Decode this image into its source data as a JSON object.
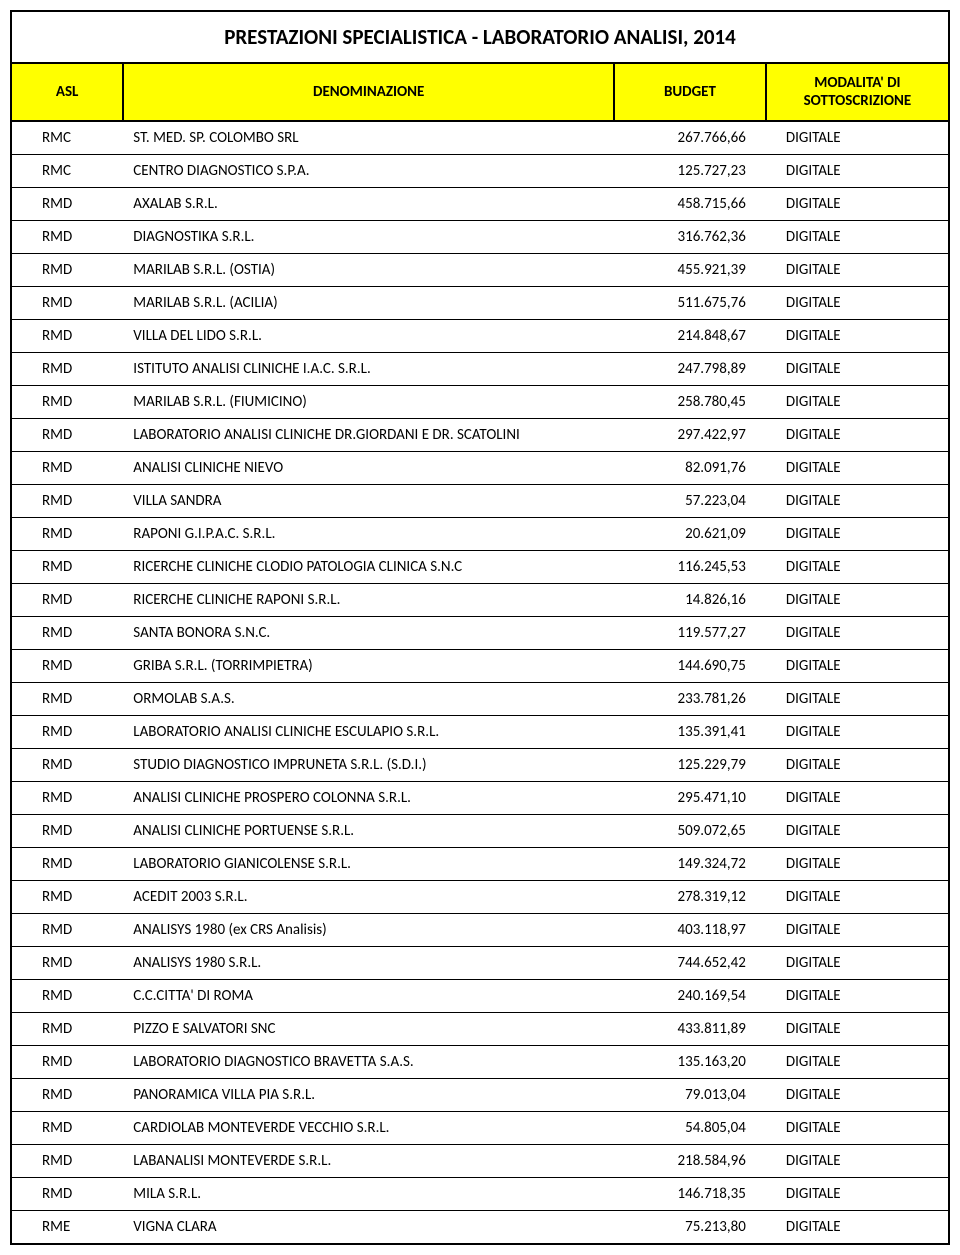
{
  "title": "PRESTAZIONI SPECIALISTICA - LABORATORIO ANALISI, 2014",
  "columns": {
    "asl": "ASL",
    "denom": "DENOMINAZIONE",
    "budget": "BUDGET",
    "modal": "MODALITA' DI SOTTOSCRIZIONE"
  },
  "rows": [
    {
      "asl": "RMC",
      "denom": "ST. MED. SP. COLOMBO SRL",
      "budget": "267.766,66",
      "modal": "DIGITALE"
    },
    {
      "asl": "RMC",
      "denom": "CENTRO DIAGNOSTICO S.P.A.",
      "budget": "125.727,23",
      "modal": "DIGITALE"
    },
    {
      "asl": "RMD",
      "denom": "AXALAB S.R.L.",
      "budget": "458.715,66",
      "modal": "DIGITALE"
    },
    {
      "asl": "RMD",
      "denom": "DIAGNOSTIKA S.R.L.",
      "budget": "316.762,36",
      "modal": "DIGITALE"
    },
    {
      "asl": "RMD",
      "denom": "MARILAB S.R.L. (OSTIA)",
      "budget": "455.921,39",
      "modal": "DIGITALE"
    },
    {
      "asl": "RMD",
      "denom": "MARILAB S.R.L. (ACILIA)",
      "budget": "511.675,76",
      "modal": "DIGITALE"
    },
    {
      "asl": "RMD",
      "denom": "VILLA DEL LIDO S.R.L.",
      "budget": "214.848,67",
      "modal": "DIGITALE"
    },
    {
      "asl": "RMD",
      "denom": "ISTITUTO ANALISI CLINICHE I.A.C. S.R.L.",
      "budget": "247.798,89",
      "modal": "DIGITALE"
    },
    {
      "asl": "RMD",
      "denom": "MARILAB S.R.L. (FIUMICINO)",
      "budget": "258.780,45",
      "modal": "DIGITALE"
    },
    {
      "asl": "RMD",
      "denom": "LABORATORIO ANALISI CLINICHE DR.GIORDANI E DR. SCATOLINI",
      "budget": "297.422,97",
      "modal": "DIGITALE"
    },
    {
      "asl": "RMD",
      "denom": "ANALISI CLINICHE NIEVO",
      "budget": "82.091,76",
      "modal": "DIGITALE"
    },
    {
      "asl": "RMD",
      "denom": "VILLA SANDRA",
      "budget": "57.223,04",
      "modal": "DIGITALE"
    },
    {
      "asl": "RMD",
      "denom": "RAPONI G.I.P.A.C. S.R.L.",
      "budget": "20.621,09",
      "modal": "DIGITALE"
    },
    {
      "asl": "RMD",
      "denom": "RICERCHE CLINICHE CLODIO PATOLOGIA CLINICA S.N.C",
      "budget": "116.245,53",
      "modal": "DIGITALE"
    },
    {
      "asl": "RMD",
      "denom": "RICERCHE CLINICHE  RAPONI S.R.L.",
      "budget": "14.826,16",
      "modal": "DIGITALE"
    },
    {
      "asl": "RMD",
      "denom": "SANTA BONORA S.N.C.",
      "budget": "119.577,27",
      "modal": "DIGITALE"
    },
    {
      "asl": "RMD",
      "denom": "GRIBA S.R.L. (TORRIMPIETRA)",
      "budget": "144.690,75",
      "modal": "DIGITALE"
    },
    {
      "asl": "RMD",
      "denom": "ORMOLAB S.A.S.",
      "budget": "233.781,26",
      "modal": "DIGITALE"
    },
    {
      "asl": "RMD",
      "denom": "LABORATORIO ANALISI CLINICHE ESCULAPIO S.R.L.",
      "budget": "135.391,41",
      "modal": "DIGITALE"
    },
    {
      "asl": "RMD",
      "denom": "STUDIO DIAGNOSTICO IMPRUNETA S.R.L. (S.D.I.)",
      "budget": "125.229,79",
      "modal": "DIGITALE"
    },
    {
      "asl": "RMD",
      "denom": "ANALISI CLINICHE PROSPERO COLONNA S.R.L.",
      "budget": "295.471,10",
      "modal": "DIGITALE"
    },
    {
      "asl": "RMD",
      "denom": "ANALISI CLINICHE PORTUENSE S.R.L.",
      "budget": "509.072,65",
      "modal": "DIGITALE"
    },
    {
      "asl": "RMD",
      "denom": "LABORATORIO GIANICOLENSE S.R.L.",
      "budget": "149.324,72",
      "modal": "DIGITALE"
    },
    {
      "asl": "RMD",
      "denom": "ACEDIT 2003 S.R.L.",
      "budget": "278.319,12",
      "modal": "DIGITALE"
    },
    {
      "asl": "RMD",
      "denom": "ANALISYS 1980 (ex CRS Analisis)",
      "budget": "403.118,97",
      "modal": "DIGITALE"
    },
    {
      "asl": "RMD",
      "denom": "ANALISYS 1980 S.R.L.",
      "budget": "744.652,42",
      "modal": "DIGITALE"
    },
    {
      "asl": "RMD",
      "denom": "C.C.CITTA' DI ROMA",
      "budget": "240.169,54",
      "modal": "DIGITALE"
    },
    {
      "asl": "RMD",
      "denom": "PIZZO E SALVATORI SNC",
      "budget": "433.811,89",
      "modal": "DIGITALE"
    },
    {
      "asl": "RMD",
      "denom": "LABORATORIO DIAGNOSTICO BRAVETTA S.A.S.",
      "budget": "135.163,20",
      "modal": "DIGITALE"
    },
    {
      "asl": "RMD",
      "denom": "PANORAMICA VILLA PIA S.R.L.",
      "budget": "79.013,04",
      "modal": "DIGITALE"
    },
    {
      "asl": "RMD",
      "denom": "CARDIOLAB MONTEVERDE VECCHIO S.R.L.",
      "budget": "54.805,04",
      "modal": "DIGITALE"
    },
    {
      "asl": "RMD",
      "denom": "LABANALISI MONTEVERDE S.R.L.",
      "budget": "218.584,96",
      "modal": "DIGITALE"
    },
    {
      "asl": "RMD",
      "denom": "MILA S.R.L.",
      "budget": "146.718,35",
      "modal": "DIGITALE"
    },
    {
      "asl": "RME",
      "denom": "VIGNA CLARA",
      "budget": "75.213,80",
      "modal": "DIGITALE"
    }
  ],
  "styles": {
    "header_bg": "#ffff00",
    "border_color": "#000000",
    "font_family": "Calibri, Arial, sans-serif",
    "title_fontsize": 21,
    "header_fontsize": 15,
    "cell_fontsize": 15
  }
}
